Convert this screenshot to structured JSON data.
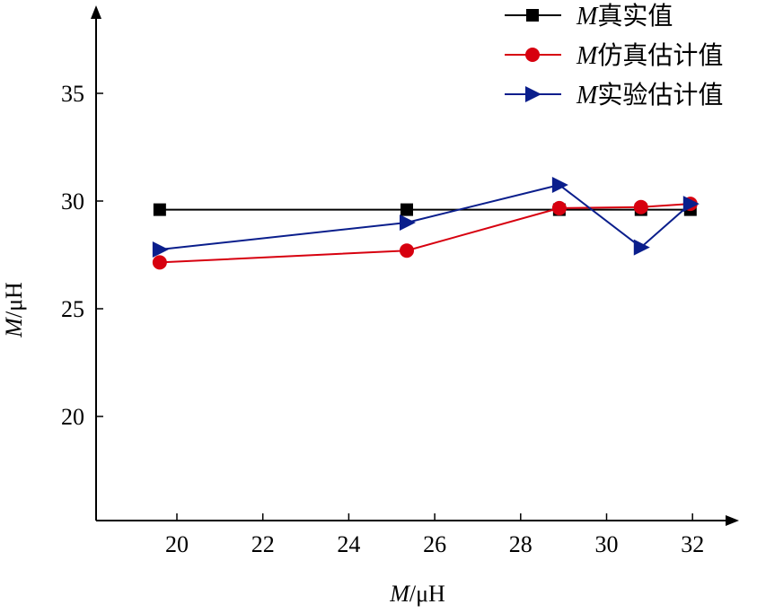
{
  "chart_data": {
    "type": "line",
    "xlabel": "M/μH",
    "ylabel": "M/μH",
    "xlim": [
      18.1,
      33.1
    ],
    "ylim": [
      15.2,
      38.5
    ],
    "x_ticks": [
      20,
      22,
      24,
      26,
      28,
      30,
      32
    ],
    "y_ticks": [
      20,
      25,
      30,
      35
    ],
    "grid": false,
    "legend_position": "top-right",
    "series": [
      {
        "name": "M真实值",
        "color": "#000000",
        "marker": "square",
        "x": [
          19.6,
          25.35,
          28.9,
          30.8,
          31.95
        ],
        "y": [
          29.6,
          29.6,
          29.6,
          29.6,
          29.6
        ]
      },
      {
        "name": "M仿真估计值",
        "color": "#d7000f",
        "marker": "circle",
        "x": [
          19.6,
          25.35,
          28.9,
          30.8,
          31.95
        ],
        "y": [
          27.15,
          27.7,
          29.67,
          29.72,
          29.87
        ]
      },
      {
        "name": "M实验估计值",
        "color": "#0a1e8c",
        "marker": "triangle-right",
        "x": [
          19.6,
          25.35,
          28.9,
          30.8,
          31.95
        ],
        "y": [
          27.75,
          29.0,
          30.75,
          27.85,
          29.87
        ]
      }
    ]
  }
}
